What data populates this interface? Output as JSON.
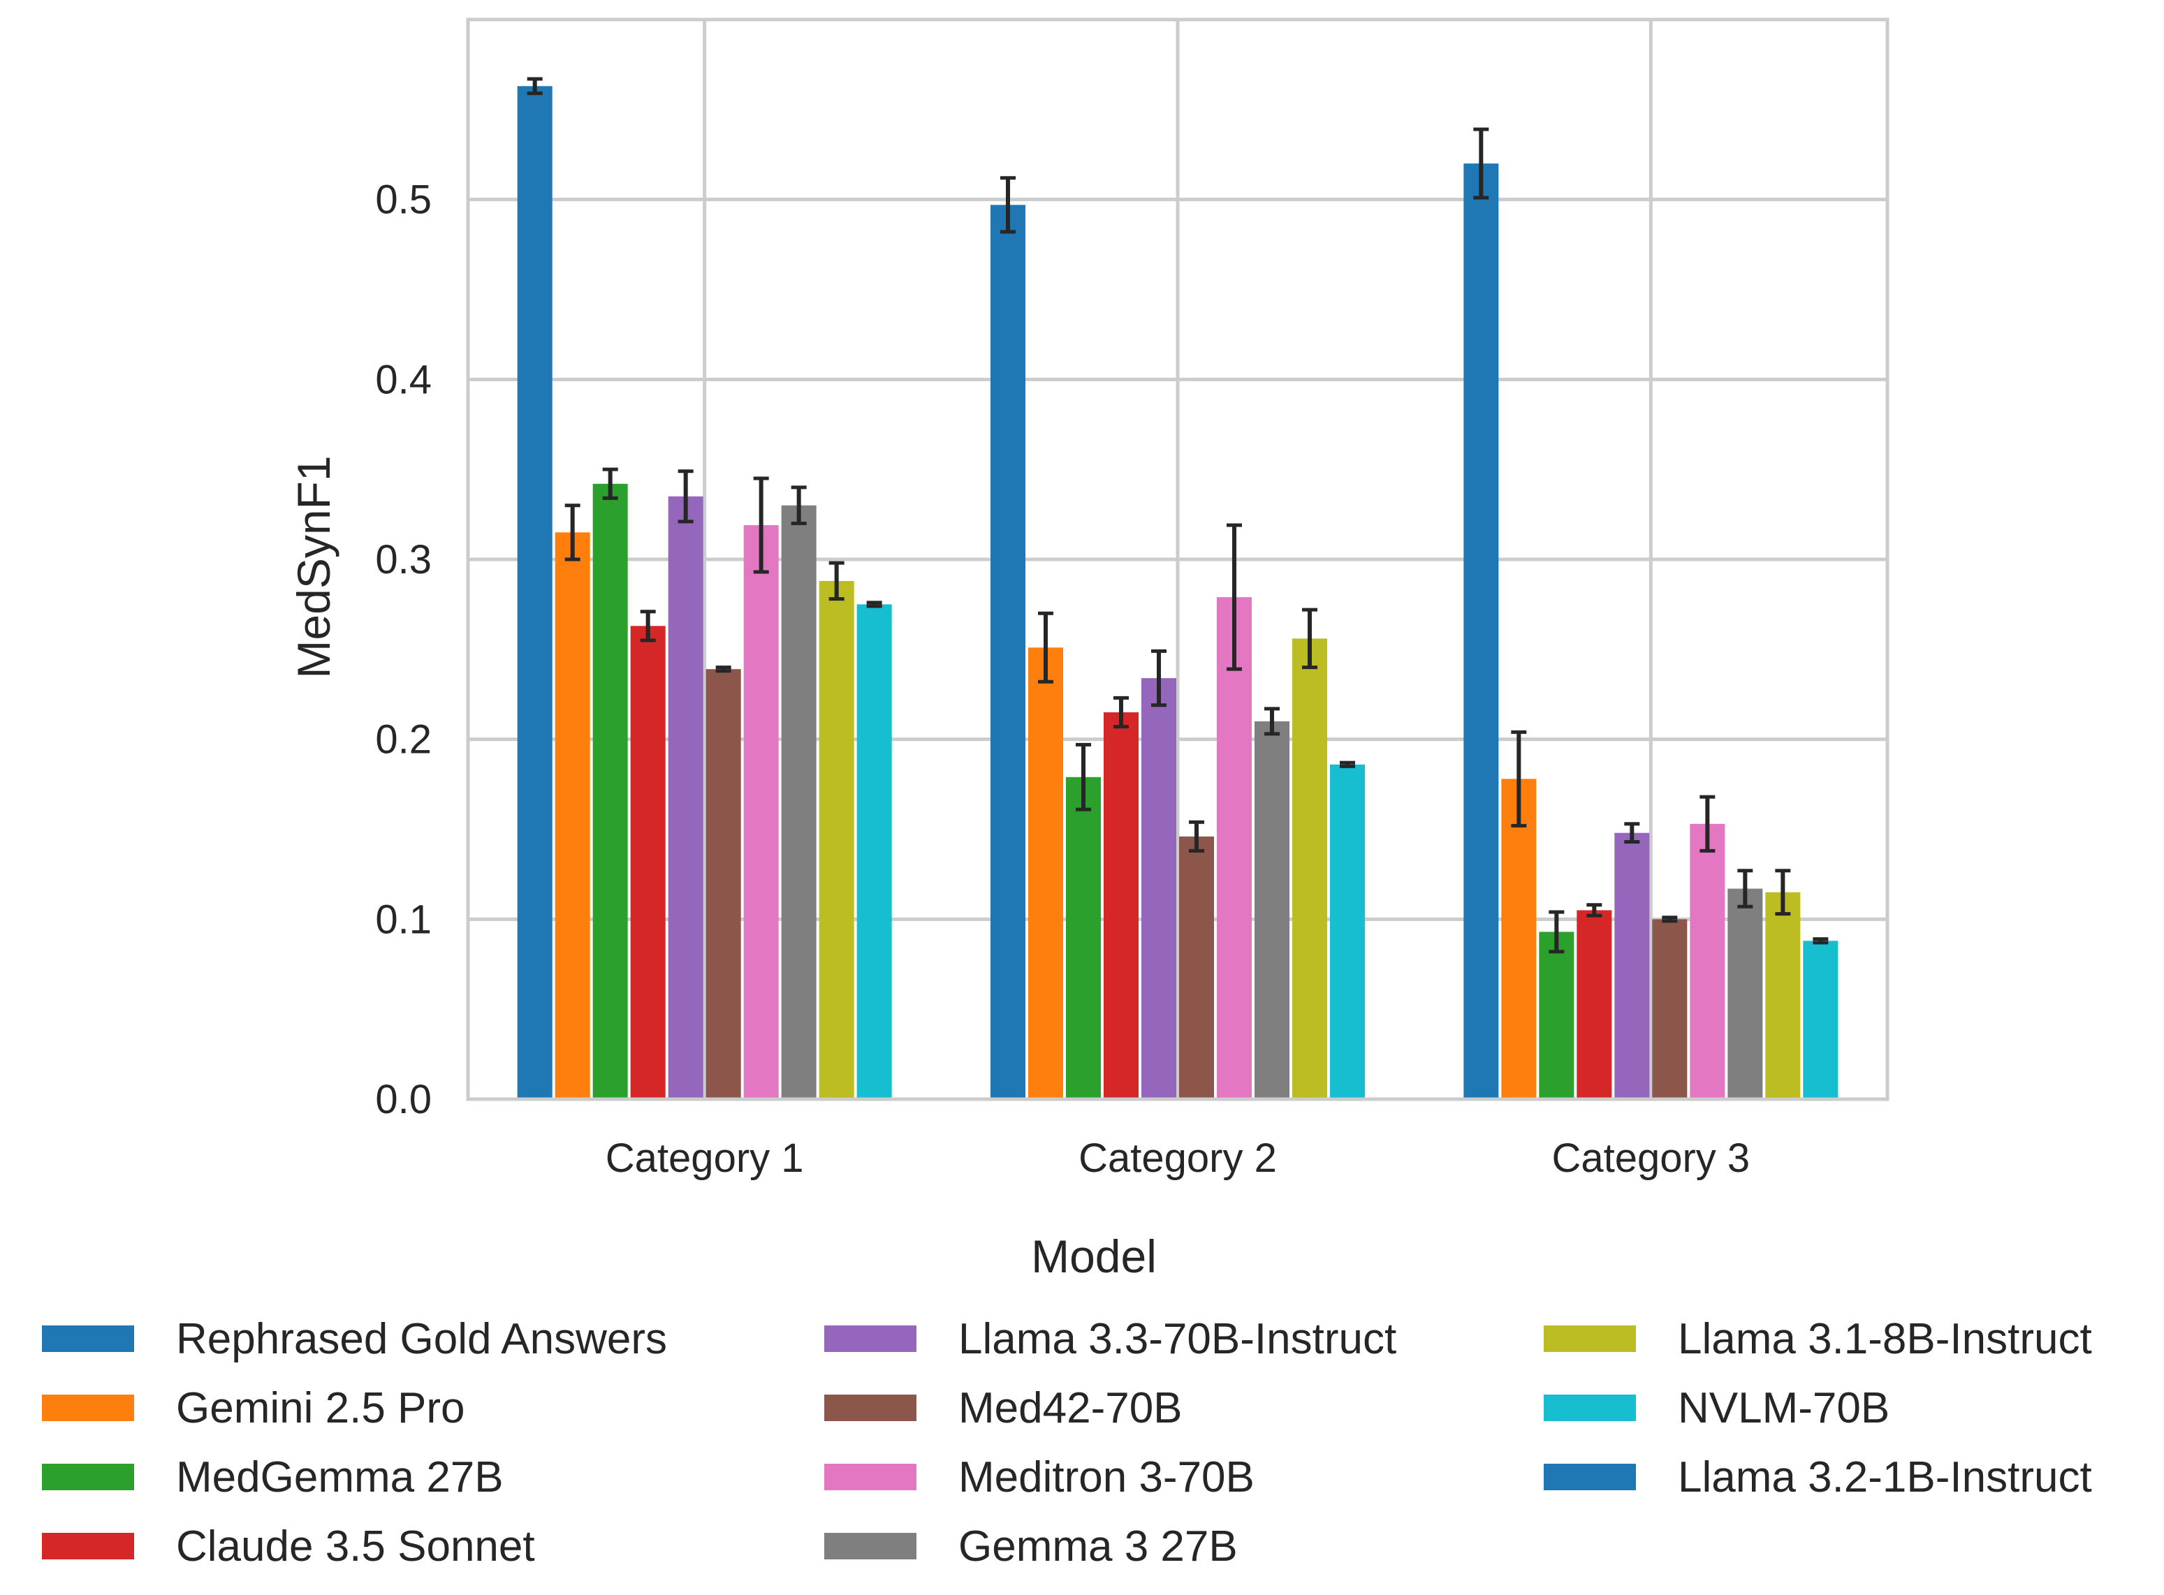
{
  "chart_data": {
    "type": "bar",
    "title": "",
    "xlabel": "",
    "ylabel": "MedSynF1",
    "ylim": [
      0,
      0.6
    ],
    "yticks": [
      0.0,
      0.1,
      0.2,
      0.3,
      0.4,
      0.5
    ],
    "ytick_labels": [
      "0.0",
      "0.1",
      "0.2",
      "0.3",
      "0.4",
      "0.5"
    ],
    "grid": true,
    "categories": [
      "Category 1",
      "Category 2",
      "Category 3"
    ],
    "series": [
      {
        "name": "Rephrased Gold Answers",
        "color": "#1f77b4",
        "values": [
          0.563,
          0.497,
          0.52
        ],
        "errors": [
          0.004,
          0.015,
          0.019
        ]
      },
      {
        "name": "Gemini 2.5 Pro",
        "color": "#ff7f0e",
        "values": [
          0.315,
          0.251,
          0.178
        ],
        "errors": [
          0.015,
          0.019,
          0.026
        ]
      },
      {
        "name": "MedGemma 27B",
        "color": "#2ca02c",
        "values": [
          0.342,
          0.179,
          0.093
        ],
        "errors": [
          0.008,
          0.018,
          0.011
        ]
      },
      {
        "name": "Claude 3.5 Sonnet",
        "color": "#d62728",
        "values": [
          0.263,
          0.215,
          0.105
        ],
        "errors": [
          0.008,
          0.008,
          0.003
        ]
      },
      {
        "name": "Llama 3.3-70B-Instruct",
        "color": "#9467bd",
        "values": [
          0.335,
          0.234,
          0.148
        ],
        "errors": [
          0.014,
          0.015,
          0.005
        ]
      },
      {
        "name": "Med42-70B",
        "color": "#8c564b",
        "values": [
          0.239,
          0.146,
          0.1
        ],
        "errors": [
          0.001,
          0.008,
          0.001
        ]
      },
      {
        "name": "Meditron 3-70B",
        "color": "#e377c2",
        "values": [
          0.319,
          0.279,
          0.153
        ],
        "errors": [
          0.026,
          0.04,
          0.015
        ]
      },
      {
        "name": "Gemma 3 27B",
        "color": "#7f7f7f",
        "values": [
          0.33,
          0.21,
          0.117
        ],
        "errors": [
          0.01,
          0.007,
          0.01
        ]
      },
      {
        "name": "Llama 3.1-8B-Instruct",
        "color": "#bcbd22",
        "values": [
          0.288,
          0.256,
          0.115
        ],
        "errors": [
          0.01,
          0.016,
          0.012
        ]
      },
      {
        "name": "NVLM-70B",
        "color": "#17becf",
        "values": [
          0.275,
          0.186,
          0.088
        ],
        "errors": [
          0.001,
          0.001,
          0.001
        ]
      },
      {
        "name": "Llama 3.2-1B-Instruct",
        "color": "#1f77b4",
        "values": [
          0,
          0,
          0
        ],
        "errors": [
          0,
          0,
          0
        ]
      }
    ],
    "legend": {
      "title": "Model",
      "placement": "bottom-center",
      "columns": 3
    }
  }
}
